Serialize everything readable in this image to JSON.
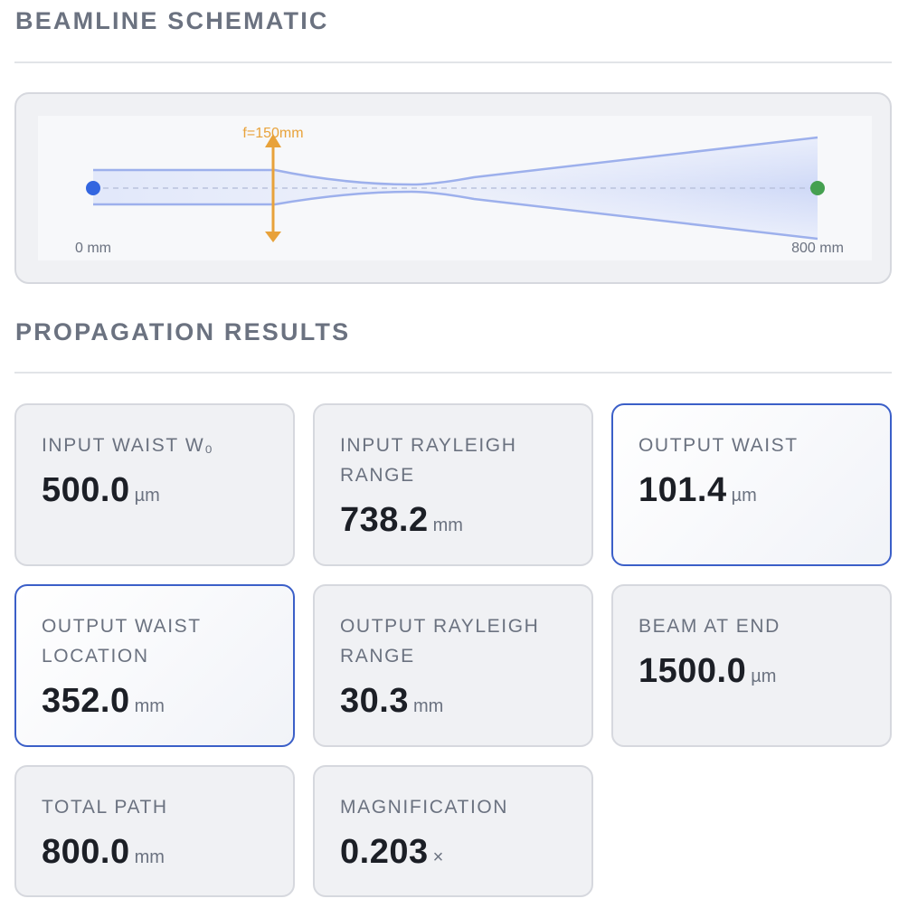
{
  "sections": {
    "schematic_title": "BEAMLINE SCHEMATIC",
    "results_title": "PROPAGATION RESULTS"
  },
  "schematic": {
    "lens_label": "f=150mm",
    "start_label": "0 mm",
    "end_label": "800 mm",
    "colors": {
      "beam": "#9db0ec",
      "lens": "#e8a23a",
      "start_dot": "#3366e0",
      "end_dot": "#45a050",
      "axis": "#b9c2dc"
    }
  },
  "results": [
    {
      "label": "INPUT WAIST W₀",
      "value": "500.0",
      "unit": "µm",
      "highlight": false
    },
    {
      "label": "INPUT RAYLEIGH RANGE",
      "value": "738.2",
      "unit": "mm",
      "highlight": false
    },
    {
      "label": "OUTPUT WAIST",
      "value": "101.4",
      "unit": "µm",
      "highlight": true
    },
    {
      "label": "OUTPUT WAIST LOCATION",
      "value": "352.0",
      "unit": "mm",
      "highlight": true
    },
    {
      "label": "OUTPUT RAYLEIGH RANGE",
      "value": "30.3",
      "unit": "mm",
      "highlight": false
    },
    {
      "label": "BEAM AT END",
      "value": "1500.0",
      "unit": "µm",
      "highlight": false
    },
    {
      "label": "TOTAL PATH",
      "value": "800.0",
      "unit": "mm",
      "highlight": false
    },
    {
      "label": "MAGNIFICATION",
      "value": "0.203",
      "unit": "×",
      "highlight": false
    }
  ]
}
